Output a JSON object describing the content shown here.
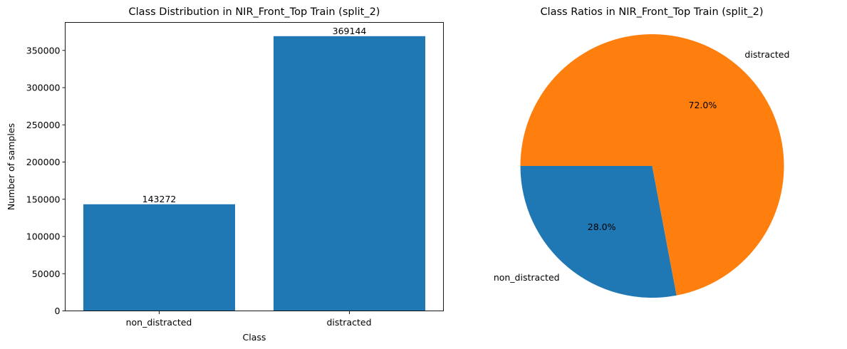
{
  "chart_data": [
    {
      "type": "bar",
      "title": "Class Distribution in NIR_Front_Top Train (split_2)",
      "xlabel": "Class",
      "ylabel": "Number of samples",
      "categories": [
        "non_distracted",
        "distracted"
      ],
      "values": [
        143272,
        369144
      ],
      "data_labels": [
        "143272",
        "369144"
      ],
      "ylim": [
        0,
        387601
      ],
      "yticks": [
        0,
        50000,
        100000,
        150000,
        200000,
        250000,
        300000,
        350000
      ],
      "ytick_labels": [
        "0",
        "50000",
        "100000",
        "150000",
        "200000",
        "250000",
        "300000",
        "350000"
      ],
      "bar_color": "#1f77b4",
      "grid": false
    },
    {
      "type": "pie",
      "title": "Class Ratios in NIR_Front_Top Train (split_2)",
      "labels": [
        "non_distracted",
        "distracted"
      ],
      "values": [
        143272,
        369144
      ],
      "percent_labels": [
        "28.0%",
        "72.0%"
      ],
      "colors": [
        "#1f77b4",
        "#ff7f0e"
      ],
      "start_angle_deg": 180
    }
  ]
}
